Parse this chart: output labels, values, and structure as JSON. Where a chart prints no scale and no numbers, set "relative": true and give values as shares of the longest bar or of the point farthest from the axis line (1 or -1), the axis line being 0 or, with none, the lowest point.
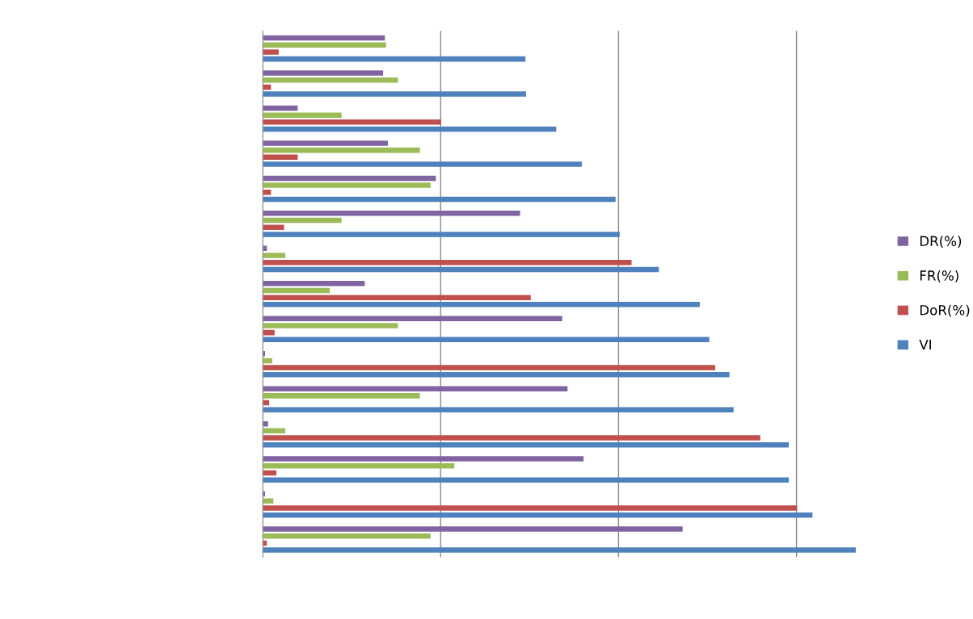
{
  "chart_data": {
    "type": "bar",
    "orientation": "horizontal",
    "relative": true,
    "grid": "x",
    "legend": "right",
    "categories": [
      null,
      null,
      null,
      null,
      null,
      null,
      null,
      null,
      null,
      null,
      null,
      null,
      null,
      null,
      null
    ],
    "series": [
      {
        "name": "VI",
        "color": "#4f81bd",
        "values": [
          0.443,
          0.444,
          0.495,
          0.538,
          0.595,
          0.602,
          0.668,
          0.737,
          0.753,
          0.787,
          0.794,
          0.887,
          0.887,
          0.927,
          1
        ]
      },
      {
        "name": "DoR(%)",
        "color": "#c0504d",
        "values": [
          0.027,
          0.014,
          0.301,
          0.059,
          0.014,
          0.036,
          0.622,
          0.452,
          0.02,
          0.763,
          0.011,
          0.839,
          0.023,
          0.901,
          0.007
        ]
      },
      {
        "name": "FR(%)",
        "color": "#9bbb59",
        "values": [
          0.208,
          0.228,
          0.133,
          0.265,
          0.283,
          0.133,
          0.038,
          0.113,
          0.228,
          0.016,
          0.265,
          0.038,
          0.323,
          0.018,
          0.283
        ]
      },
      {
        "name": "DR(%)",
        "color": "#8064a2",
        "values": [
          0.206,
          0.203,
          0.059,
          0.211,
          0.292,
          0.434,
          0.007,
          0.172,
          0.505,
          0.004,
          0.514,
          0.009,
          0.541,
          0.004,
          0.708
        ]
      }
    ]
  }
}
